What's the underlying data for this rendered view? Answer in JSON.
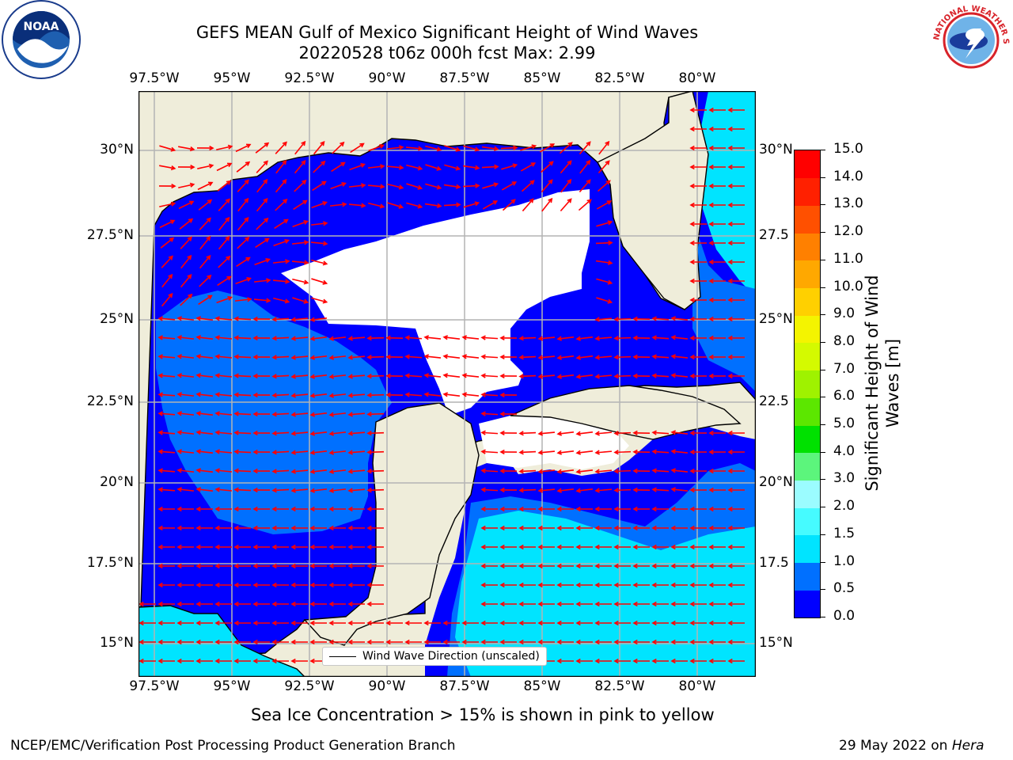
{
  "title": {
    "line1": "GEFS MEAN Gulf of Mexico Significant Height of Wind Waves",
    "line2": "20220528 t06z 000h fcst   Max: 2.99"
  },
  "lon_ticks": [
    "97.5°W",
    "95°W",
    "92.5°W",
    "90°W",
    "87.5°W",
    "85°W",
    "82.5°W",
    "80°W"
  ],
  "lat_ticks_left": [
    "30°N",
    "27.5°N",
    "25°N",
    "22.5°N",
    "20°N",
    "17.5°N",
    "15°N"
  ],
  "lat_ticks_right": [
    "30°N",
    "27.5",
    "25°N",
    "22.5",
    "20°N",
    "17.5",
    "15°N"
  ],
  "colorbar": {
    "label": "Significant Height of Wind Waves [m]",
    "ticks": [
      "15.0",
      "14.0",
      "13.0",
      "12.0",
      "11.0",
      "10.0",
      "9.0",
      "8.0",
      "7.0",
      "6.0",
      "5.0",
      "4.0",
      "3.0",
      "2.0",
      "1.5",
      "1.0",
      "0.5",
      "0.0"
    ],
    "colors": [
      "#0000ff",
      "#0070ff",
      "#00e4ff",
      "#46fbff",
      "#9bfcff",
      "#5cf57c",
      "#00e100",
      "#5ce700",
      "#9ff200",
      "#d4fa00",
      "#f4f400",
      "#ffd000",
      "#ffa800",
      "#ff8000",
      "#ff5000",
      "#ff2000",
      "#ff0000"
    ]
  },
  "legend": {
    "label": "Wind Wave Direction (unscaled)"
  },
  "caption": "Sea Ice Concentration > 15% is shown in pink to yellow",
  "footer": {
    "left": "NCEP/EMC/Verification Post Processing Product Generation Branch",
    "right_date": "29 May 2022 on ",
    "right_host": "Hera"
  },
  "logos": {
    "left": "NOAA",
    "right": "NATIONAL WEATHER SERVICE"
  },
  "colors": {
    "land": "#efedda",
    "arrow": "#ff0000",
    "grid": "#b4b4b4",
    "ocean_low": "#0000ff",
    "ocean_mid": "#0070ff",
    "ocean_high": "#00e4ff"
  }
}
